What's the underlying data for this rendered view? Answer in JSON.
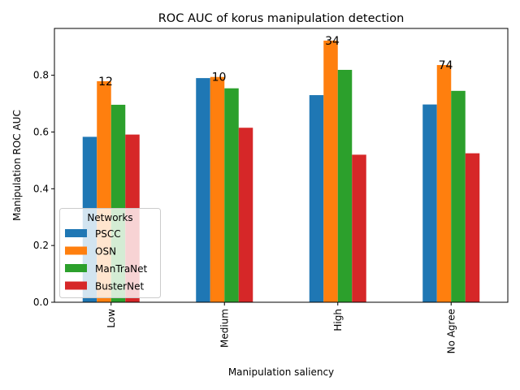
{
  "chart_data": {
    "type": "bar",
    "title": "ROC AUC of korus manipulation detection",
    "xlabel": "Manipulation saliency",
    "ylabel": "Manipulation ROC AUC",
    "categories": [
      "Low",
      "Medium",
      "High",
      "No Agree"
    ],
    "ylim": [
      0,
      0.965
    ],
    "yticks": [
      "0.0",
      "0.2",
      "0.4",
      "0.6",
      "0.8"
    ],
    "ytick_values": [
      0.0,
      0.2,
      0.4,
      0.6,
      0.8
    ],
    "grid": false,
    "legend_title": "Networks",
    "legend_position": "lower-left",
    "series": [
      {
        "name": "PSCC",
        "color": "#1f77b4",
        "values": [
          0.583,
          0.79,
          0.73,
          0.697
        ]
      },
      {
        "name": "OSN",
        "color": "#ff7f0e",
        "values": [
          0.779,
          0.794,
          0.922,
          0.836
        ]
      },
      {
        "name": "ManTraNet",
        "color": "#2ca02c",
        "values": [
          0.696,
          0.754,
          0.819,
          0.745
        ]
      },
      {
        "name": "BusterNet",
        "color": "#d62728",
        "values": [
          0.591,
          0.615,
          0.52,
          0.525
        ]
      }
    ],
    "annotations": [
      "12",
      "10",
      "34",
      "74"
    ]
  }
}
